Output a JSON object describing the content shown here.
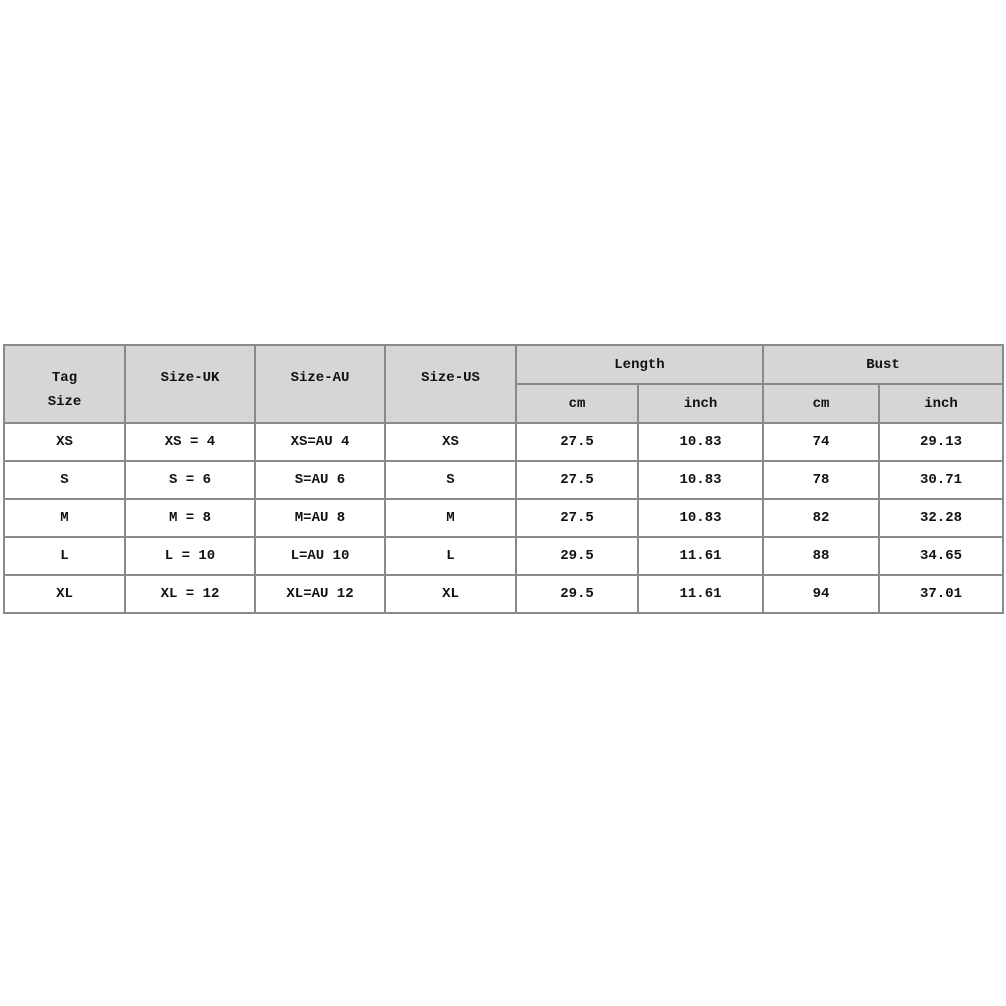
{
  "table": {
    "headers": {
      "tag_size": [
        "Tag",
        "Size"
      ],
      "size_uk": "Size-UK",
      "size_au": "Size-AU",
      "size_us": "Size-US",
      "length": "Length",
      "bust": "Bust",
      "length_cm": "cm",
      "length_inch": "inch",
      "bust_cm": "cm",
      "bust_inch": "inch"
    },
    "rows": [
      [
        "XS",
        "XS = 4",
        "XS=AU 4",
        "XS",
        "27.5",
        "10.83",
        "74",
        "29.13"
      ],
      [
        "S",
        "S = 6",
        "S=AU 6",
        "S",
        "27.5",
        "10.83",
        "78",
        "30.71"
      ],
      [
        "M",
        "M = 8",
        "M=AU 8",
        "M",
        "27.5",
        "10.83",
        "82",
        "32.28"
      ],
      [
        "L",
        "L = 10",
        "L=AU 10",
        "L",
        "29.5",
        "11.61",
        "88",
        "34.65"
      ],
      [
        "XL",
        "XL = 12",
        "XL=AU 12",
        "XL",
        "29.5",
        "11.61",
        "94",
        "37.01"
      ]
    ]
  },
  "colors": {
    "header_bg": "#d6d6d6",
    "border": "#8a8a8a"
  }
}
